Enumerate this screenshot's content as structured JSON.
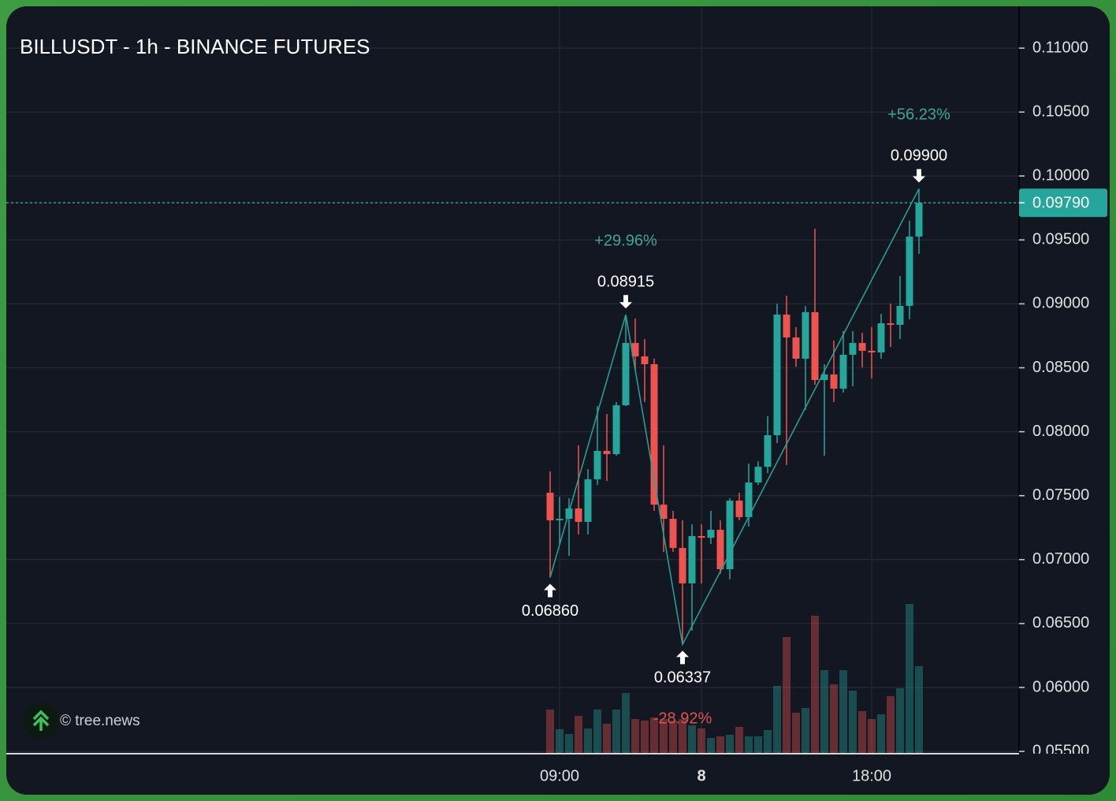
{
  "chart_data": {
    "type": "candlestick",
    "title": "BILLUSDT - 1h - BINANCE FUTURES",
    "watermark": "© tree.news",
    "categories": [
      null,
      "09:00",
      null,
      null,
      null,
      null,
      null,
      null,
      null,
      null,
      null,
      null,
      null,
      null,
      null,
      null,
      "8",
      null,
      null,
      null,
      null,
      null,
      null,
      null,
      null,
      null,
      null,
      null,
      null,
      null,
      null,
      null,
      null,
      null,
      "18:00",
      null,
      null,
      null,
      null,
      null
    ],
    "open": [
      0.07523,
      0.07307,
      0.07319,
      0.074,
      0.07295,
      0.07628,
      0.0785,
      0.07825,
      0.08207,
      0.08694,
      0.08589,
      0.08528,
      0.0743,
      0.07319,
      0.07091,
      0.06814,
      0.07184,
      0.07171,
      0.07233,
      0.06925,
      0.07461,
      0.07332,
      0.07603,
      0.07726,
      0.07973,
      0.08916,
      0.08737,
      0.08571,
      0.08935,
      0.08404,
      0.08448,
      0.08337,
      0.08602,
      0.08694,
      0.08633,
      0.0862,
      0.08848,
      0.08836,
      0.08984,
      0.09526
    ],
    "high": [
      0.07689,
      0.07492,
      0.0748,
      0.07893,
      0.07708,
      0.08201,
      0.08139,
      0.08232,
      0.08915,
      0.08885,
      0.08725,
      0.08571,
      0.07893,
      0.07381,
      0.07307,
      0.07276,
      0.07276,
      0.07381,
      0.07307,
      0.0748,
      0.07523,
      0.07751,
      0.07769,
      0.08121,
      0.09002,
      0.09064,
      0.08818,
      0.08984,
      0.09588,
      0.08528,
      0.08713,
      0.08787,
      0.08787,
      0.08774,
      0.08818,
      0.08922,
      0.09002,
      0.09218,
      0.0965,
      0.099
    ],
    "low": [
      0.0686,
      0.07122,
      0.0703,
      0.07196,
      0.07196,
      0.07584,
      0.07615,
      0.07813,
      0.08201,
      0.08478,
      0.08232,
      0.07381,
      0.0706,
      0.0706,
      0.06337,
      0.06444,
      0.06814,
      0.07122,
      0.06888,
      0.06845,
      0.07307,
      0.07258,
      0.07584,
      0.07677,
      0.07911,
      0.07739,
      0.08509,
      0.0817,
      0.08367,
      0.07813,
      0.08232,
      0.08306,
      0.08355,
      0.08503,
      0.08417,
      0.08571,
      0.08663,
      0.08725,
      0.08879,
      0.09391
    ],
    "close": [
      0.07307,
      0.07319,
      0.074,
      0.07295,
      0.07628,
      0.0785,
      0.07825,
      0.08207,
      0.08694,
      0.08589,
      0.08528,
      0.0743,
      0.07319,
      0.07091,
      0.06814,
      0.07184,
      0.07171,
      0.07233,
      0.06925,
      0.07461,
      0.07332,
      0.07603,
      0.07726,
      0.07973,
      0.08916,
      0.08737,
      0.08571,
      0.08935,
      0.08404,
      0.08448,
      0.08337,
      0.08602,
      0.08694,
      0.08633,
      0.0862,
      0.08848,
      0.08836,
      0.08984,
      0.09526,
      0.0979
    ],
    "volume": [
      56,
      31,
      25,
      48,
      32,
      56,
      38,
      56,
      77,
      44,
      42,
      46,
      44,
      42,
      44,
      36,
      32,
      20,
      22,
      24,
      34,
      22,
      22,
      30,
      86,
      148,
      52,
      58,
      175,
      106,
      88,
      106,
      80,
      54,
      44,
      50,
      73,
      83,
      190,
      111
    ],
    "up_color": "#26a69a",
    "down_color": "#ef5350",
    "ylim": [
      0.05482,
      0.11327
    ],
    "yticks": [
      {
        "value": 0.055,
        "label": "0.05500"
      },
      {
        "value": 0.06,
        "label": "0.06000"
      },
      {
        "value": 0.065,
        "label": "0.06500"
      },
      {
        "value": 0.07,
        "label": "0.07000"
      },
      {
        "value": 0.075,
        "label": "0.07500"
      },
      {
        "value": 0.08,
        "label": "0.08000"
      },
      {
        "value": 0.085,
        "label": "0.08500"
      },
      {
        "value": 0.09,
        "label": "0.09000"
      },
      {
        "value": 0.095,
        "label": "0.09500"
      },
      {
        "value": 0.1,
        "label": "0.10000"
      },
      {
        "value": 0.105,
        "label": "0.10500"
      },
      {
        "value": 0.11,
        "label": "0.11000"
      }
    ],
    "grid": true,
    "last_price": {
      "value": 0.0979,
      "label": "0.09790"
    },
    "pivots": [
      {
        "value": 0.0686,
        "label": "0.06860"
      },
      {
        "value": 0.08915,
        "label": "0.08915"
      },
      {
        "value": 0.06337,
        "label": "0.06337"
      },
      {
        "value": 0.099,
        "label": "0.09900"
      }
    ],
    "changes": [
      "+29.96%",
      "-28.92%",
      "+56.23%"
    ]
  }
}
